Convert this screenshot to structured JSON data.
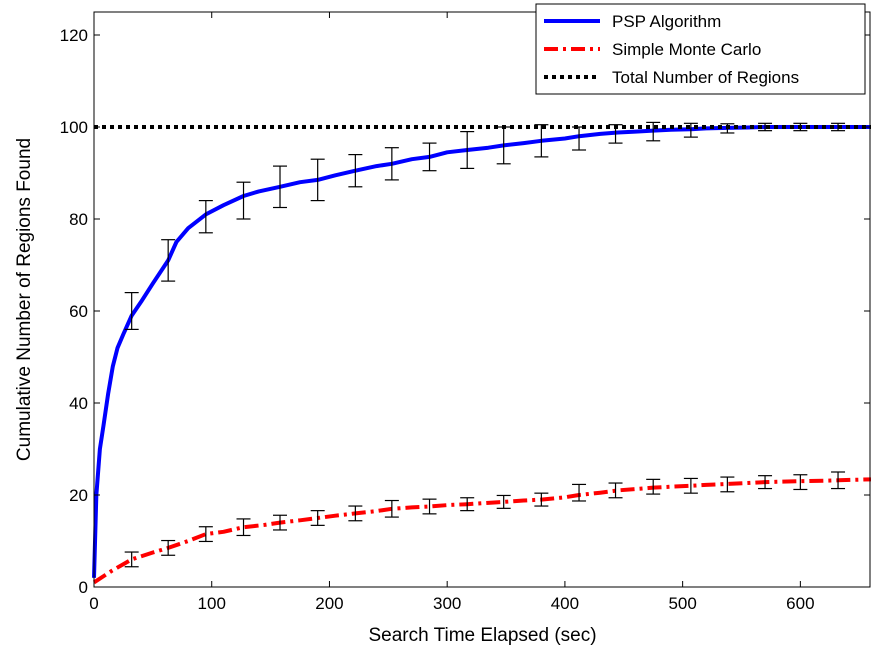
{
  "chart_data": {
    "type": "line",
    "title": "",
    "xlabel": "Search Time Elapsed (sec)",
    "ylabel": "Cumulative Number of Regions Found",
    "xlim": [
      0,
      660
    ],
    "ylim": [
      0,
      125
    ],
    "xticks": [
      0,
      100,
      200,
      300,
      400,
      500,
      600
    ],
    "yticks": [
      0,
      20,
      40,
      60,
      80,
      100,
      120
    ],
    "xtick_labels": [
      "0",
      "100",
      "200",
      "300",
      "400",
      "500",
      "600"
    ],
    "ytick_labels": [
      "0",
      "20",
      "40",
      "60",
      "80",
      "100",
      "120"
    ],
    "grid": false,
    "legend_position": "top-right",
    "series": [
      {
        "name": "PSP Algorithm",
        "color": "#0000ff",
        "style": "solid",
        "x": [
          0,
          2,
          5,
          8,
          12,
          16,
          20,
          25,
          32,
          40,
          50,
          63,
          70,
          80,
          95,
          110,
          127,
          140,
          158,
          175,
          190,
          205,
          222,
          240,
          253,
          270,
          285,
          300,
          317,
          335,
          348,
          365,
          380,
          400,
          412,
          430,
          445,
          460,
          475,
          490,
          507,
          520,
          538,
          555,
          570,
          585,
          600,
          620,
          632,
          645,
          660
        ],
        "y": [
          2,
          20,
          30,
          35,
          42,
          48,
          52,
          55,
          59,
          62,
          66,
          71,
          75,
          78,
          81,
          83,
          85,
          86,
          87,
          88,
          88.5,
          89.5,
          90.5,
          91.5,
          92,
          93,
          93.5,
          94.5,
          95,
          95.5,
          96,
          96.5,
          97,
          97.5,
          98,
          98.5,
          98.8,
          99,
          99.2,
          99.4,
          99.5,
          99.7,
          99.8,
          99.9,
          100,
          100,
          100,
          100,
          100,
          100,
          100
        ]
      },
      {
        "name": "Simple Monte Carlo",
        "color": "#ff0000",
        "style": "dashdot",
        "x": [
          0,
          15,
          32,
          50,
          63,
          80,
          95,
          110,
          127,
          145,
          158,
          175,
          190,
          205,
          222,
          240,
          253,
          270,
          285,
          300,
          317,
          335,
          348,
          365,
          380,
          400,
          412,
          430,
          445,
          460,
          475,
          490,
          507,
          520,
          538,
          555,
          570,
          585,
          600,
          620,
          632,
          645,
          660
        ],
        "y": [
          1,
          3.5,
          6,
          7.5,
          8.5,
          10,
          11.5,
          12,
          13,
          13.5,
          14,
          14.5,
          15,
          15.5,
          16,
          16.5,
          17,
          17.3,
          17.5,
          17.8,
          18,
          18.3,
          18.5,
          18.8,
          19,
          19.5,
          20,
          20.5,
          21,
          21.3,
          21.6,
          21.8,
          22,
          22.2,
          22.4,
          22.6,
          22.8,
          22.9,
          23,
          23.1,
          23.2,
          23.3,
          23.4
        ]
      },
      {
        "name": "Total Number of Regions",
        "color": "#000000",
        "style": "dotted",
        "x": [
          0,
          660
        ],
        "y": [
          100,
          100
        ]
      }
    ],
    "error_bars": {
      "color": "#000000",
      "PSP Algorithm": {
        "x": [
          32,
          63,
          95,
          127,
          158,
          190,
          222,
          253,
          285,
          317,
          348,
          380,
          412,
          443,
          475,
          507,
          538,
          570,
          600,
          632
        ],
        "y": [
          60,
          71,
          80.5,
          84,
          87,
          88.5,
          90.5,
          92,
          93.5,
          95,
          96,
          97,
          97.5,
          98.5,
          99,
          99.3,
          99.7,
          100,
          100,
          100
        ],
        "err": [
          4,
          4.5,
          3.5,
          4,
          4.5,
          4.5,
          3.5,
          3.5,
          3,
          4,
          4,
          3.5,
          2.5,
          2,
          2,
          1.5,
          1,
          0.8,
          0.8,
          0.8
        ]
      },
      "Simple Monte Carlo": {
        "x": [
          32,
          63,
          95,
          127,
          158,
          190,
          222,
          253,
          285,
          317,
          348,
          380,
          412,
          443,
          475,
          507,
          538,
          570,
          600,
          632
        ],
        "y": [
          6,
          8.5,
          11.5,
          13,
          14,
          15,
          16,
          17,
          17.5,
          18,
          18.5,
          19,
          20.5,
          21,
          21.8,
          22,
          22.3,
          22.8,
          22.8,
          23.2
        ],
        "err": [
          1.6,
          1.6,
          1.6,
          1.8,
          1.6,
          1.6,
          1.6,
          1.8,
          1.6,
          1.4,
          1.4,
          1.4,
          1.8,
          1.6,
          1.6,
          1.6,
          1.6,
          1.4,
          1.6,
          1.8
        ]
      }
    }
  }
}
